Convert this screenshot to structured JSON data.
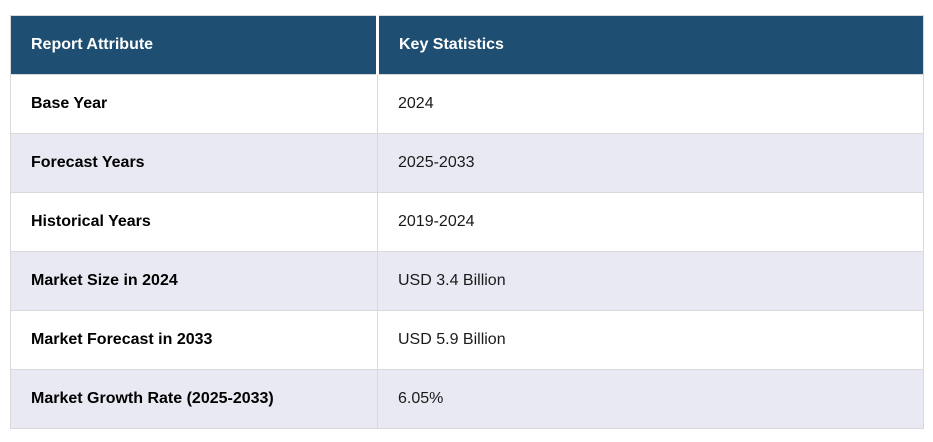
{
  "table": {
    "columns": [
      {
        "label": "Report Attribute"
      },
      {
        "label": "Key Statistics"
      }
    ],
    "rows": [
      {
        "attribute": "Base Year",
        "value": "2024"
      },
      {
        "attribute": "Forecast Years",
        "value": "2025-2033"
      },
      {
        "attribute": "Historical Years",
        "value": "2019-2024"
      },
      {
        "attribute": "Market Size in 2024",
        "value": "USD 3.4 Billion"
      },
      {
        "attribute": "Market Forecast in 2033",
        "value": "USD 5.9 Billion"
      },
      {
        "attribute": "Market Growth Rate (2025-2033)",
        "value": "6.05%"
      }
    ],
    "colors": {
      "header_bg": "#1f4e73",
      "header_text": "#ffffff",
      "row_bg": "#ffffff",
      "row_alt_bg": "#e8e9f2",
      "border": "#d9d9d9",
      "attr_text": "#000000",
      "value_text": "#1a1a1a"
    }
  }
}
